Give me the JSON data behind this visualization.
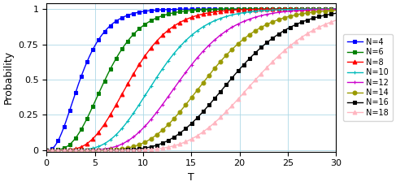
{
  "series": [
    {
      "N": 4,
      "color": "#0000FF",
      "marker": "s",
      "label": "N=4",
      "shape": 3
    },
    {
      "N": 6,
      "color": "#008000",
      "marker": "s",
      "label": "N=6",
      "shape": 5
    },
    {
      "N": 8,
      "color": "#FF0000",
      "marker": "^",
      "label": "N=8",
      "shape": 7
    },
    {
      "N": 10,
      "color": "#00BBBB",
      "marker": "+",
      "label": "N=10",
      "shape": 9
    },
    {
      "N": 12,
      "color": "#CC00CC",
      "marker": "+",
      "label": "N=12",
      "shape": 11
    },
    {
      "N": 14,
      "color": "#999900",
      "marker": "o",
      "label": "N=14",
      "shape": 13
    },
    {
      "N": 16,
      "color": "#000000",
      "marker": "s",
      "label": "N=16",
      "shape": 15
    },
    {
      "N": 18,
      "color": "#FFB6C1",
      "marker": "^",
      "label": "N=18",
      "shape": 17
    }
  ],
  "gamma_scale": 1.3,
  "T_max": 30,
  "T_min": 0,
  "ylabel": "Probability",
  "xlabel": "T",
  "yticks": [
    0,
    0.25,
    0.5,
    0.75,
    1
  ],
  "ytick_labels": [
    "0",
    "0.25",
    "0.5",
    "0.75",
    "1"
  ],
  "xticks": [
    0,
    5,
    10,
    15,
    20,
    25,
    30
  ],
  "grid_color": "#ADD8E6",
  "background_color": "#FFFFFF",
  "linewidth": 1.0,
  "markersize": 3.5,
  "marker_every": 12
}
